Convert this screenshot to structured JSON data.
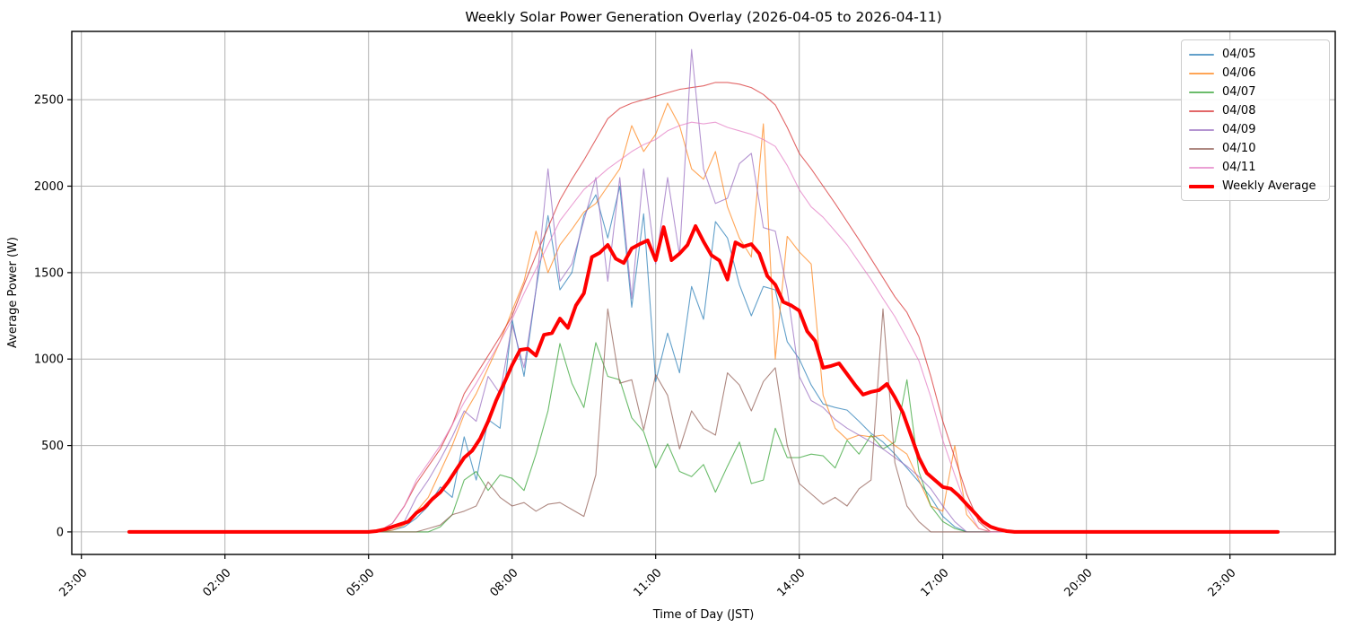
{
  "figure": {
    "title": "Weekly Solar Power Generation Overlay (2026-04-05 to 2026-04-11)",
    "xlabel": "Time of Day (JST)",
    "ylabel": "Average Power (W)"
  },
  "chart_data": {
    "type": "line",
    "title": "Weekly Solar Power Generation Overlay (2026-04-05 to 2026-04-11)",
    "xlabel": "Time of Day (JST)",
    "ylabel": "Average Power (W)",
    "grid": true,
    "legend_position": "upper right",
    "unit": "W",
    "axes": {
      "x_min_minutes": -72,
      "x_max_minutes": 1512,
      "y_min": -130,
      "y_max": 2895,
      "x_ticks": [
        {
          "minutes": -60,
          "label": "23:00"
        },
        {
          "minutes": 120,
          "label": "02:00"
        },
        {
          "minutes": 300,
          "label": "05:00"
        },
        {
          "minutes": 480,
          "label": "08:00"
        },
        {
          "minutes": 660,
          "label": "11:00"
        },
        {
          "minutes": 840,
          "label": "14:00"
        },
        {
          "minutes": 1020,
          "label": "17:00"
        },
        {
          "minutes": 1200,
          "label": "20:00"
        },
        {
          "minutes": 1380,
          "label": "23:00"
        }
      ],
      "y_ticks": [
        0,
        500,
        1000,
        1500,
        2000,
        2500
      ]
    },
    "style": {
      "background": "#ffffff",
      "grid_color": "#b0b0b0",
      "spine_color": "#000000",
      "day_line_alpha": 0.7,
      "day_line_width": 1.1,
      "average_line_width": 4
    },
    "series": [
      {
        "label": "04/05",
        "color": "#1f77b4",
        "width": 1.1,
        "alpha": 0.7,
        "start_min": 0,
        "step_min": 15,
        "values": [
          0,
          0,
          0,
          0,
          0,
          0,
          0,
          0,
          0,
          0,
          0,
          0,
          0,
          0,
          0,
          0,
          0,
          0,
          0,
          0,
          0,
          0,
          10,
          30,
          80,
          150,
          260,
          200,
          550,
          300,
          650,
          600,
          1230,
          900,
          1400,
          1830,
          1400,
          1500,
          1830,
          1950,
          1700,
          2000,
          1300,
          1840,
          870,
          1150,
          920,
          1420,
          1230,
          1795,
          1700,
          1430,
          1250,
          1420,
          1400,
          1100,
          1000,
          850,
          740,
          720,
          705,
          640,
          570,
          520,
          450,
          370,
          290,
          200,
          90,
          30,
          0,
          0,
          0,
          0,
          0,
          0,
          0,
          0,
          0,
          0,
          0,
          0,
          0,
          0,
          0,
          0,
          0,
          0,
          0,
          0,
          0,
          0,
          0,
          0,
          0,
          0,
          0
        ]
      },
      {
        "label": "04/06",
        "color": "#ff7f0e",
        "width": 1.1,
        "alpha": 0.7,
        "start_min": 0,
        "step_min": 15,
        "values": [
          0,
          0,
          0,
          0,
          0,
          0,
          0,
          0,
          0,
          0,
          0,
          0,
          0,
          0,
          0,
          0,
          0,
          0,
          0,
          0,
          0,
          0,
          10,
          40,
          120,
          200,
          350,
          500,
          680,
          800,
          950,
          1100,
          1280,
          1450,
          1740,
          1500,
          1660,
          1750,
          1850,
          1900,
          2000,
          2100,
          2350,
          2200,
          2300,
          2480,
          2350,
          2100,
          2040,
          2200,
          1880,
          1700,
          1590,
          2360,
          1000,
          1710,
          1620,
          1550,
          790,
          600,
          535,
          560,
          550,
          560,
          500,
          450,
          300,
          150,
          120,
          500,
          100,
          20,
          0,
          0,
          0,
          0,
          0,
          0,
          0,
          0,
          0,
          0,
          0,
          0,
          0,
          0,
          0,
          0,
          0,
          0,
          0,
          0,
          0,
          0,
          0,
          0,
          0
        ]
      },
      {
        "label": "04/07",
        "color": "#2ca02c",
        "width": 1.1,
        "alpha": 0.7,
        "start_min": 0,
        "step_min": 15,
        "values": [
          0,
          0,
          0,
          0,
          0,
          0,
          0,
          0,
          0,
          0,
          0,
          0,
          0,
          0,
          0,
          0,
          0,
          0,
          0,
          0,
          0,
          0,
          0,
          0,
          0,
          0,
          30,
          100,
          300,
          350,
          240,
          330,
          310,
          240,
          450,
          700,
          1090,
          860,
          720,
          1095,
          900,
          880,
          660,
          580,
          370,
          510,
          350,
          320,
          390,
          230,
          380,
          520,
          280,
          300,
          600,
          430,
          430,
          450,
          440,
          370,
          530,
          450,
          560,
          480,
          520,
          880,
          350,
          150,
          60,
          20,
          0,
          0,
          0,
          0,
          0,
          0,
          0,
          0,
          0,
          0,
          0,
          0,
          0,
          0,
          0,
          0,
          0,
          0,
          0,
          0,
          0,
          0,
          0,
          0,
          0,
          0,
          0
        ]
      },
      {
        "label": "04/08",
        "color": "#d62728",
        "width": 1.1,
        "alpha": 0.7,
        "start_min": 0,
        "step_min": 15,
        "values": [
          0,
          0,
          0,
          0,
          0,
          0,
          0,
          0,
          0,
          0,
          0,
          0,
          0,
          0,
          0,
          0,
          0,
          0,
          0,
          0,
          0,
          10,
          50,
          150,
          280,
          380,
          480,
          620,
          800,
          910,
          1020,
          1130,
          1250,
          1430,
          1600,
          1760,
          1920,
          2040,
          2150,
          2270,
          2390,
          2450,
          2480,
          2500,
          2520,
          2540,
          2560,
          2570,
          2580,
          2600,
          2600,
          2590,
          2570,
          2530,
          2470,
          2340,
          2190,
          2100,
          2000,
          1900,
          1795,
          1690,
          1580,
          1470,
          1360,
          1270,
          1130,
          900,
          640,
          430,
          220,
          60,
          0,
          0,
          0,
          0,
          0,
          0,
          0,
          0,
          0,
          0,
          0,
          0,
          0,
          0,
          0,
          0,
          0,
          0,
          0,
          0,
          0,
          0,
          0,
          0,
          0
        ]
      },
      {
        "label": "04/09",
        "color": "#9467bd",
        "width": 1.1,
        "alpha": 0.7,
        "start_min": 0,
        "step_min": 15,
        "values": [
          0,
          0,
          0,
          0,
          0,
          0,
          0,
          0,
          0,
          0,
          0,
          0,
          0,
          0,
          0,
          0,
          0,
          0,
          0,
          0,
          0,
          0,
          20,
          60,
          200,
          300,
          420,
          550,
          700,
          640,
          900,
          800,
          1200,
          950,
          1400,
          2100,
          1450,
          1550,
          1800,
          2050,
          1450,
          2050,
          1350,
          2100,
          1550,
          2050,
          1600,
          2790,
          2100,
          1900,
          1930,
          2130,
          2190,
          1760,
          1740,
          1400,
          900,
          760,
          720,
          650,
          600,
          560,
          520,
          480,
          430,
          380,
          320,
          250,
          150,
          60,
          0,
          0,
          0,
          0,
          0,
          0,
          0,
          0,
          0,
          0,
          0,
          0,
          0,
          0,
          0,
          0,
          0,
          0,
          0,
          0,
          0,
          0,
          0,
          0,
          0,
          0,
          0
        ]
      },
      {
        "label": "04/10",
        "color": "#8c564b",
        "width": 1.1,
        "alpha": 0.7,
        "start_min": 0,
        "step_min": 15,
        "values": [
          0,
          0,
          0,
          0,
          0,
          0,
          0,
          0,
          0,
          0,
          0,
          0,
          0,
          0,
          0,
          0,
          0,
          0,
          0,
          0,
          0,
          0,
          0,
          0,
          0,
          20,
          40,
          100,
          120,
          150,
          290,
          200,
          150,
          170,
          120,
          160,
          170,
          130,
          90,
          330,
          1290,
          860,
          880,
          590,
          910,
          790,
          480,
          700,
          600,
          560,
          920,
          850,
          700,
          870,
          950,
          500,
          280,
          220,
          160,
          200,
          150,
          250,
          300,
          1290,
          400,
          150,
          60,
          0,
          0,
          0,
          0,
          0,
          0,
          0,
          0,
          0,
          0,
          0,
          0,
          0,
          0,
          0,
          0,
          0,
          0,
          0,
          0,
          0,
          0,
          0,
          0,
          0,
          0,
          0,
          0,
          0,
          0
        ]
      },
      {
        "label": "04/11",
        "color": "#e377c2",
        "width": 1.1,
        "alpha": 0.7,
        "start_min": 0,
        "step_min": 15,
        "values": [
          0,
          0,
          0,
          0,
          0,
          0,
          0,
          0,
          0,
          0,
          0,
          0,
          0,
          0,
          0,
          0,
          0,
          0,
          0,
          0,
          0,
          10,
          50,
          150,
          300,
          400,
          500,
          620,
          750,
          860,
          980,
          1100,
          1230,
          1380,
          1520,
          1660,
          1800,
          1890,
          1980,
          2040,
          2100,
          2150,
          2200,
          2240,
          2270,
          2320,
          2350,
          2370,
          2360,
          2370,
          2340,
          2320,
          2300,
          2270,
          2230,
          2120,
          1980,
          1880,
          1820,
          1740,
          1660,
          1560,
          1460,
          1350,
          1245,
          1120,
          990,
          780,
          530,
          330,
          140,
          20,
          0,
          0,
          0,
          0,
          0,
          0,
          0,
          0,
          0,
          0,
          0,
          0,
          0,
          0,
          0,
          0,
          0,
          0,
          0,
          0,
          0,
          0,
          0,
          0,
          0
        ]
      },
      {
        "label": "Weekly Average",
        "color": "#ff0000",
        "width": 4,
        "alpha": 1.0,
        "start_min": 0,
        "step_min": 10,
        "values": [
          0,
          0,
          0,
          0,
          0,
          0,
          0,
          0,
          0,
          0,
          0,
          0,
          0,
          0,
          0,
          0,
          0,
          0,
          0,
          0,
          0,
          0,
          0,
          0,
          0,
          0,
          0,
          0,
          0,
          0,
          0,
          5,
          15,
          30,
          45,
          60,
          110,
          140,
          190,
          230,
          290,
          360,
          430,
          470,
          540,
          640,
          760,
          860,
          965,
          1053,
          1060,
          1020,
          1140,
          1150,
          1234,
          1180,
          1310,
          1380,
          1590,
          1615,
          1660,
          1580,
          1556,
          1640,
          1665,
          1686,
          1572,
          1763,
          1572,
          1610,
          1660,
          1769,
          1680,
          1600,
          1570,
          1460,
          1675,
          1650,
          1665,
          1610,
          1480,
          1430,
          1330,
          1310,
          1280,
          1160,
          1105,
          950,
          960,
          975,
          913,
          850,
          794,
          810,
          820,
          856,
          778,
          690,
          560,
          430,
          340,
          300,
          260,
          250,
          210,
          160,
          110,
          60,
          30,
          15,
          5,
          0,
          0,
          0,
          0,
          0,
          0,
          0,
          0,
          0,
          0,
          0,
          0,
          0,
          0,
          0,
          0,
          0,
          0,
          0,
          0,
          0,
          0,
          0,
          0,
          0,
          0,
          0,
          0,
          0,
          0,
          0,
          0,
          0,
          0
        ]
      }
    ]
  }
}
